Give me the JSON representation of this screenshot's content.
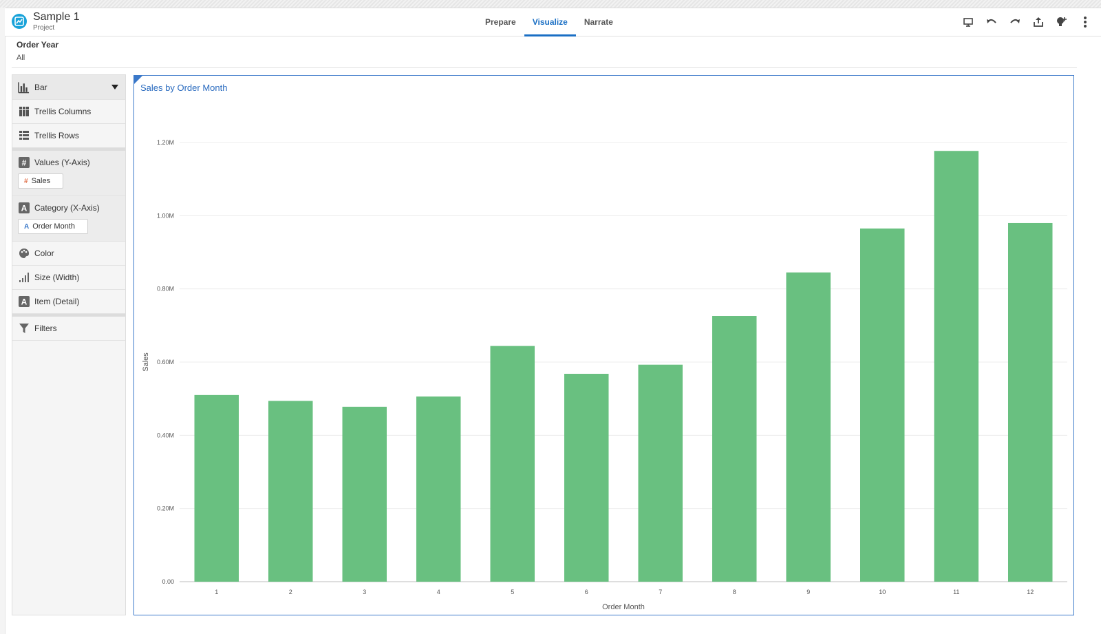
{
  "project": {
    "title": "Sample 1",
    "subtitle": "Project"
  },
  "tabs": [
    {
      "label": "Prepare",
      "active": false
    },
    {
      "label": "Visualize",
      "active": true
    },
    {
      "label": "Narrate",
      "active": false
    }
  ],
  "toolbar": {
    "icons": [
      "present-icon",
      "undo-icon",
      "redo-icon",
      "share-icon",
      "add-insight-icon",
      "more-icon"
    ]
  },
  "filter": {
    "label": "Order Year",
    "value": "All"
  },
  "grammar_panel": {
    "viz_type": "Bar",
    "trellis_columns": "Trellis Columns",
    "trellis_rows": "Trellis Rows",
    "values_label": "Values (Y-Axis)",
    "values_pill": "Sales",
    "category_label": "Category (X-Axis)",
    "category_pill": "Order Month",
    "color": "Color",
    "size": "Size (Width)",
    "item": "Item (Detail)",
    "filters": "Filters"
  },
  "colors": {
    "accent": "#1a6fc4",
    "bar": "#69c080",
    "frame": "#3a78c9"
  },
  "chart_data": {
    "type": "bar",
    "title": "Sales by Order Month",
    "xlabel": "Order Month",
    "ylabel": "Sales",
    "categories": [
      "1",
      "2",
      "3",
      "4",
      "5",
      "6",
      "7",
      "8",
      "9",
      "10",
      "11",
      "12"
    ],
    "values": [
      510000,
      494000,
      478000,
      506000,
      644000,
      568000,
      593000,
      726000,
      845000,
      965000,
      1177000,
      980000
    ],
    "ylim": [
      0,
      1200000
    ],
    "yticks": [
      {
        "value": 0,
        "label": "0.00"
      },
      {
        "value": 200000,
        "label": "0.20M"
      },
      {
        "value": 400000,
        "label": "0.40M"
      },
      {
        "value": 600000,
        "label": "0.60M"
      },
      {
        "value": 800000,
        "label": "0.80M"
      },
      {
        "value": 1000000,
        "label": "1.00M"
      },
      {
        "value": 1200000,
        "label": "1.20M"
      }
    ],
    "grid": true,
    "legend": "none"
  }
}
